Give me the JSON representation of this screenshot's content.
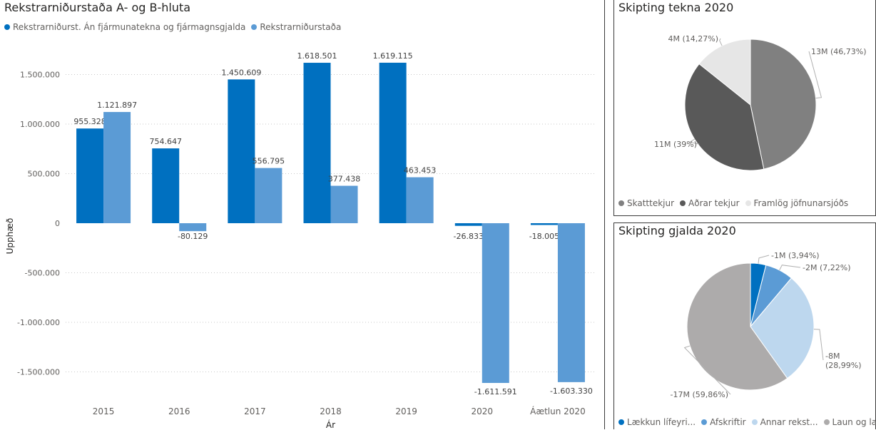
{
  "bar_panel": {
    "title": "Rekstrarniðurstaða A- og B-hluta",
    "legend": [
      {
        "label": "Rekstrarniðurst. Án fjármunatekna og fjármagnsgjalda",
        "color": "#0070C0"
      },
      {
        "label": "Rekstrarniðurstaða",
        "color": "#5B9BD5"
      }
    ]
  },
  "income_panel": {
    "title": "Skipting tekna 2020",
    "legend": [
      {
        "label": "Skatttekjur",
        "color": "#808080"
      },
      {
        "label": "Aðrar tekjur",
        "color": "#595959"
      },
      {
        "label": "Framlög jöfnunarsjóðs",
        "color": "#E6E6E6"
      }
    ]
  },
  "expense_panel": {
    "title": "Skipting gjalda 2020",
    "legend": [
      {
        "label": "Lækkun lífeyri...",
        "color": "#0070C0"
      },
      {
        "label": "Afskriftir",
        "color": "#5B9BD5"
      },
      {
        "label": "Annar rekst...",
        "color": "#BDD7EE"
      },
      {
        "label": "Laun og la...",
        "color": "#ADABAB"
      }
    ]
  },
  "chart_data": [
    {
      "type": "bar",
      "title": "Rekstrarniðurstaða A- og B-hluta",
      "xlabel": "Ár",
      "ylabel": "Upphæð",
      "categories": [
        "2015",
        "2016",
        "2017",
        "2018",
        "2019",
        "2020",
        "Áætlun 2020"
      ],
      "series": [
        {
          "name": "Rekstrarniðurst. Án fjármunatekna og fjármagnsgjalda",
          "color": "#0070C0",
          "values": [
            955328,
            754647,
            1450609,
            1618501,
            1619115,
            -26833,
            -18005
          ],
          "labels": [
            "955.328",
            "754.647",
            "1.450.609",
            "1.618.501",
            "1.619.115",
            "-26.833",
            "-18.005"
          ]
        },
        {
          "name": "Rekstrarniðurstaða",
          "color": "#5B9BD5",
          "values": [
            1121897,
            -80129,
            556795,
            377438,
            463453,
            -1611591,
            -1603330
          ],
          "labels": [
            "1.121.897",
            "-80.129",
            "556.795",
            "377.438",
            "463.453",
            "-1.611.591",
            "-1.603.330"
          ]
        }
      ],
      "yticks": [
        1500000,
        1000000,
        500000,
        0,
        -500000,
        -1000000,
        -1500000
      ],
      "ytick_labels": [
        "1.500.000",
        "1.000.000",
        "500.000",
        "0",
        "-500.000",
        "-1.000.000",
        "-1.500.000"
      ],
      "ylim": [
        -1720000,
        1720000
      ],
      "grid": true,
      "legend_position": "top-left"
    },
    {
      "type": "pie",
      "title": "Skipting tekna 2020",
      "slices": [
        {
          "name": "Skatttekjur",
          "percent": 46.73,
          "label": "13M (46,73%)",
          "color": "#808080"
        },
        {
          "name": "Aðrar tekjur",
          "percent": 39.0,
          "label": "11M (39%)",
          "color": "#595959"
        },
        {
          "name": "Framlög jöfnunarsjóðs",
          "percent": 14.27,
          "label": "4M (14,27%)",
          "color": "#E6E6E6"
        }
      ],
      "legend_position": "bottom"
    },
    {
      "type": "pie",
      "title": "Skipting gjalda 2020",
      "slices": [
        {
          "name": "Lækkun lífeyri...",
          "percent": 3.94,
          "label": "-1M (3,94%)",
          "color": "#0070C0"
        },
        {
          "name": "Afskriftir",
          "percent": 7.22,
          "label": "-2M (7,22%)",
          "color": "#5B9BD5"
        },
        {
          "name": "Annar rekst...",
          "percent": 28.99,
          "label": [
            "-8M",
            "(28,99%)"
          ],
          "color": "#BDD7EE"
        },
        {
          "name": "Laun og la...",
          "percent": 59.86,
          "label": "-17M (59,86%)",
          "color": "#ADABAB"
        }
      ],
      "legend_position": "bottom"
    }
  ]
}
